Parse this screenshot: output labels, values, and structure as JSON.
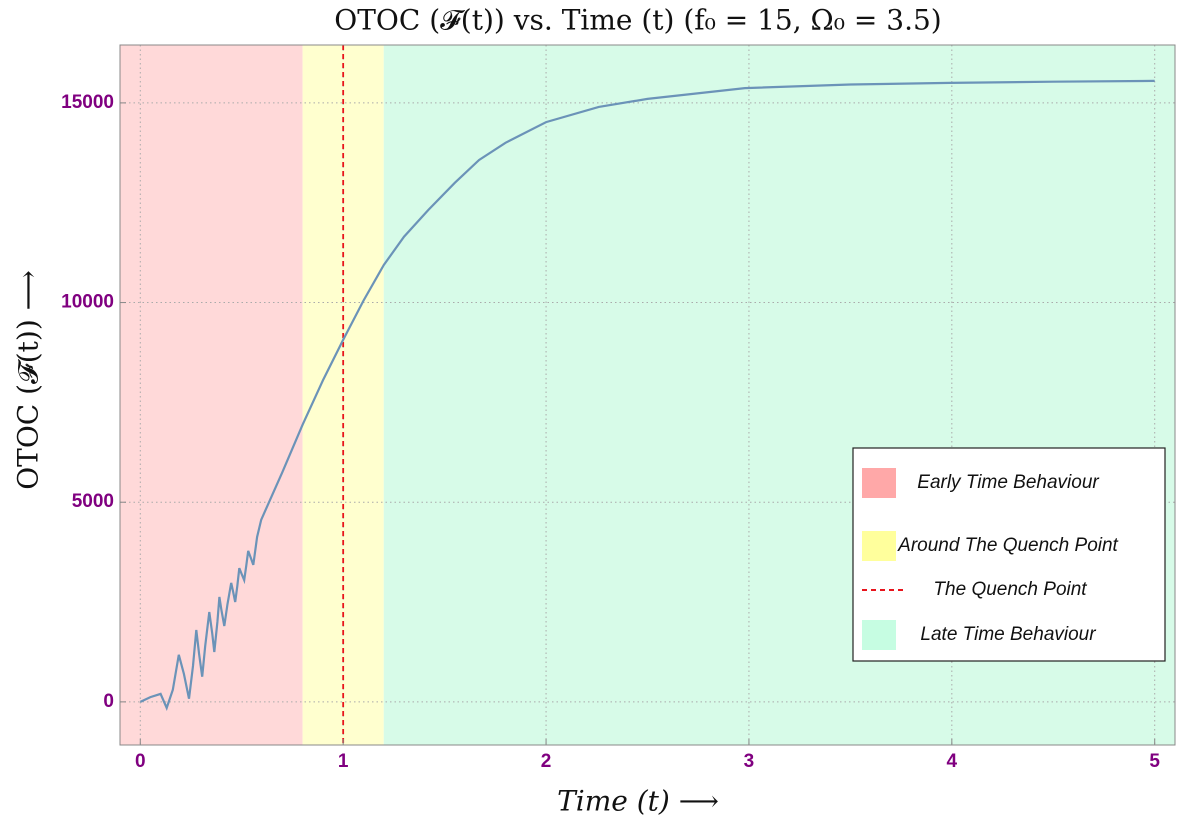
{
  "chart_data": {
    "type": "line",
    "title": "OTOC (𝓕(t)) vs. Time (t) (f₀ = 15, Ω₀ = 3.5)",
    "x_label": "Time (t)  ⟶",
    "y_label": "OTOC (𝓕(t))  ⟶",
    "xlim": [
      -0.1,
      5.1
    ],
    "ylim": [
      -1080,
      16450
    ],
    "xticks": [
      0,
      1,
      2,
      3,
      4,
      5
    ],
    "yticks": [
      0,
      5000,
      10000,
      15000
    ],
    "grid": true,
    "regions": [
      {
        "name": "Early Time Behaviour",
        "color": "#ffd9d9",
        "legend_color": "#ffa8a8",
        "range": [
          -0.1,
          0.8
        ]
      },
      {
        "name": "Around The Quench Point",
        "color": "#ffffcf",
        "legend_color": "#ffff9c",
        "range": [
          0.8,
          1.2
        ]
      },
      {
        "name": "Late Time Behaviour",
        "color": "#d7fbe8",
        "legend_color": "#c6fde2",
        "range": [
          1.2,
          5.1
        ]
      }
    ],
    "vline": {
      "name": "The Quench Point",
      "x": 1,
      "color": "#e8141c"
    },
    "series": [
      {
        "color": "#6b93b8",
        "x": [
          0,
          0.05,
          0.1,
          0.13,
          0.16,
          0.19,
          0.215,
          0.24,
          0.26,
          0.276,
          0.29,
          0.305,
          0.32,
          0.34,
          0.355,
          0.365,
          0.38,
          0.39,
          0.4,
          0.414,
          0.43,
          0.448,
          0.458,
          0.468,
          0.478,
          0.488,
          0.5,
          0.512,
          0.522,
          0.532,
          0.545,
          0.557,
          0.576,
          0.596,
          0.7,
          0.8,
          0.9,
          1.0,
          1.1,
          1.2,
          1.3,
          1.42,
          1.55,
          1.67,
          1.8,
          2.0,
          2.26,
          2.5,
          2.98,
          3.5,
          3.99,
          4.5,
          5.0
        ],
        "values": [
          0,
          120,
          200,
          -150,
          300,
          1180,
          700,
          80,
          900,
          1800,
          1200,
          630,
          1400,
          2250,
          1700,
          1250,
          2000,
          2630,
          2300,
          1900,
          2450,
          2980,
          2750,
          2500,
          2900,
          3350,
          3200,
          3050,
          3400,
          3780,
          3600,
          3430,
          4130,
          4560,
          5750,
          6940,
          8050,
          9070,
          10050,
          10940,
          11650,
          12320,
          13000,
          13570,
          14000,
          14520,
          14900,
          15100,
          15370,
          15460,
          15500,
          15530,
          15550
        ]
      }
    ]
  }
}
